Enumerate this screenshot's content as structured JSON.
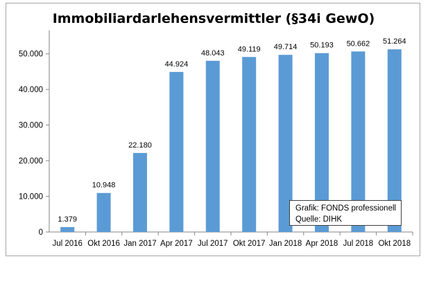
{
  "chart_data": {
    "type": "bar",
    "title": "Immobiliardarlehensvermittler (§34i GewO)",
    "categories": [
      "Jul 2016",
      "Okt 2016",
      "Jan 2017",
      "Apr 2017",
      "Jul 2017",
      "Okt 2017",
      "Jan 2018",
      "Apr 2018",
      "Jul 2018",
      "Okt 2018"
    ],
    "values": [
      1379,
      10948,
      22180,
      44924,
      48043,
      49119,
      49714,
      50193,
      50662,
      51264
    ],
    "data_labels": [
      "1.379",
      "10.948",
      "22.180",
      "44.924",
      "48.043",
      "49.119",
      "49.714",
      "50.193",
      "50.662",
      "51.264"
    ],
    "ylim": [
      0,
      55000
    ],
    "yticks": [
      0,
      10000,
      20000,
      30000,
      40000,
      50000
    ],
    "ytick_labels": [
      "0",
      "10.000",
      "20.000",
      "30.000",
      "40.000",
      "50.000"
    ],
    "grid": false,
    "bar_color": "#5b9bd5"
  },
  "source_box": {
    "line1": "Grafik: FONDS professionell",
    "line2": "Quelle: DIHK"
  }
}
